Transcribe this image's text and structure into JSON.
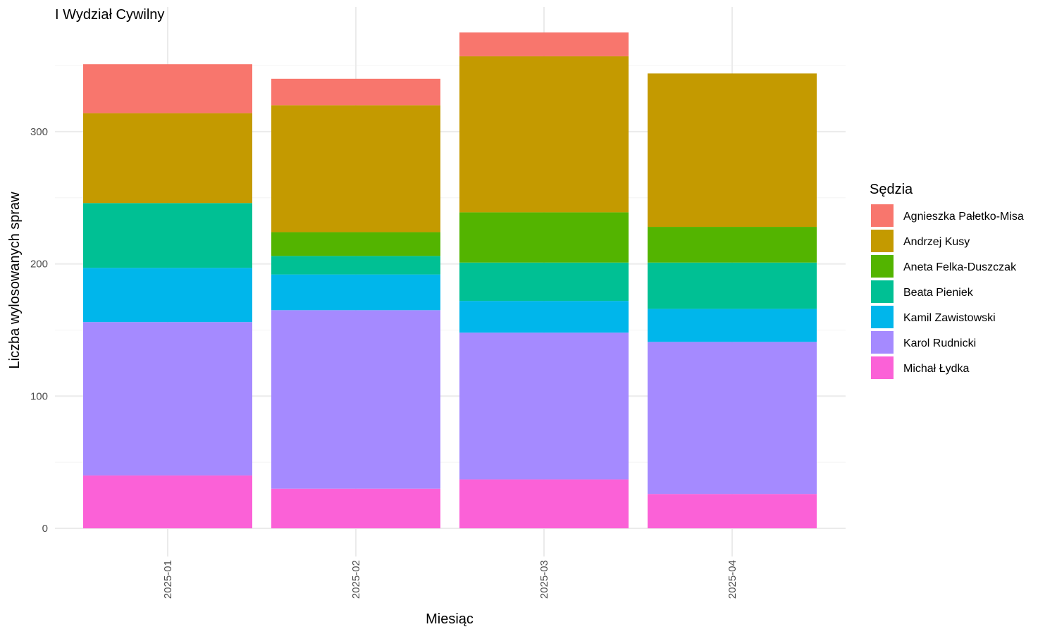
{
  "chart_data": {
    "type": "bar",
    "stacked": true,
    "title": "I Wydział Cywilny",
    "xlabel": "Miesiąc",
    "ylabel": "Liczba wylosowanych spraw",
    "categories": [
      "2025-01",
      "2025-02",
      "2025-03",
      "2025-04"
    ],
    "ylim": [
      0,
      395
    ],
    "yticks": [
      0,
      100,
      200,
      300
    ],
    "grid": true,
    "legend_title": "Sędzia",
    "legend_position": "right",
    "series": [
      {
        "name": "Agnieszka Pałetko-Misa",
        "color": "#F8766D",
        "values": [
          37,
          20,
          18,
          0
        ]
      },
      {
        "name": "Andrzej Kusy",
        "color": "#C49A00",
        "values": [
          68,
          96,
          118,
          116
        ]
      },
      {
        "name": "Aneta Felka-Duszczak",
        "color": "#53B400",
        "values": [
          0,
          18,
          38,
          27
        ]
      },
      {
        "name": "Beata Pieniek",
        "color": "#00C094",
        "values": [
          49,
          14,
          29,
          35
        ]
      },
      {
        "name": "Kamil Zawistowski",
        "color": "#00B6EB",
        "values": [
          41,
          27,
          24,
          25
        ]
      },
      {
        "name": "Karol Rudnicki",
        "color": "#A58AFF",
        "values": [
          116,
          135,
          111,
          115
        ]
      },
      {
        "name": "Michał Łydka",
        "color": "#FB61D7",
        "values": [
          40,
          30,
          37,
          26
        ]
      }
    ]
  }
}
